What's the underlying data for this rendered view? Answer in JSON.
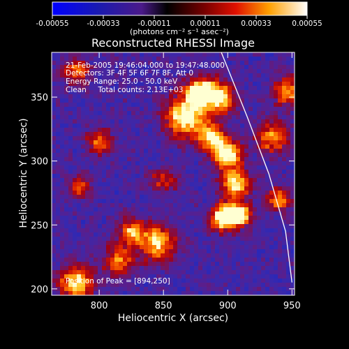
{
  "chart_data": {
    "type": "heatmap",
    "title": "Reconstructed RHESSI Image",
    "xlabel": "Heliocentric X (arcsec)",
    "ylabel": "Heliocentric Y (arcsec)",
    "xlim": [
      763,
      952
    ],
    "ylim": [
      195,
      385
    ],
    "x_ticks": [
      800,
      850,
      900,
      950
    ],
    "y_ticks": [
      200,
      250,
      300,
      350
    ],
    "colorbar": {
      "ticks": [
        "-0.00055",
        "-0.00033",
        "-0.00011",
        "0.00011",
        "0.00033",
        "0.00055"
      ],
      "range": [
        -0.00055,
        0.00055
      ],
      "units": "(photons cm⁻² s⁻¹ asec⁻²)"
    },
    "info_lines": [
      "21-Feb-2005 19:46:04.000 to 19:47:48.000",
      "Detectors: 3F 4F 5F 6F 7F 8F, Att 0",
      "Energy Range: 25.0 - 50.0 keV",
      "Clean     Total counts: 2.13E+03"
    ],
    "peak_label": "Position of Peak = [894,250]",
    "peak": [
      894,
      250
    ],
    "limb_curve": [
      [
        895,
        385
      ],
      [
        915,
        335
      ],
      [
        932,
        290
      ],
      [
        945,
        245
      ],
      [
        950,
        205
      ]
    ],
    "hot_spots": [
      {
        "x": 868,
        "y": 335,
        "level": 0.9,
        "r": 16
      },
      {
        "x": 878,
        "y": 355,
        "level": 0.85,
        "r": 10
      },
      {
        "x": 893,
        "y": 350,
        "level": 0.8,
        "r": 12
      },
      {
        "x": 888,
        "y": 318,
        "level": 0.75,
        "r": 10
      },
      {
        "x": 900,
        "y": 305,
        "level": 0.85,
        "r": 11
      },
      {
        "x": 906,
        "y": 282,
        "level": 0.8,
        "r": 11
      },
      {
        "x": 897,
        "y": 256,
        "level": 1.0,
        "r": 10
      },
      {
        "x": 910,
        "y": 258,
        "level": 0.8,
        "r": 9
      },
      {
        "x": 935,
        "y": 318,
        "level": 0.6,
        "r": 12
      },
      {
        "x": 946,
        "y": 355,
        "level": 0.6,
        "r": 11
      },
      {
        "x": 940,
        "y": 270,
        "level": 0.6,
        "r": 9
      },
      {
        "x": 845,
        "y": 236,
        "level": 0.7,
        "r": 14
      },
      {
        "x": 825,
        "y": 245,
        "level": 0.6,
        "r": 10
      },
      {
        "x": 782,
        "y": 205,
        "level": 0.75,
        "r": 13
      },
      {
        "x": 815,
        "y": 222,
        "level": 0.55,
        "r": 12
      },
      {
        "x": 782,
        "y": 370,
        "level": 0.55,
        "r": 10
      },
      {
        "x": 800,
        "y": 315,
        "level": 0.5,
        "r": 10
      },
      {
        "x": 785,
        "y": 280,
        "level": 0.5,
        "r": 8
      },
      {
        "x": 850,
        "y": 285,
        "level": 0.4,
        "r": 10
      }
    ]
  }
}
